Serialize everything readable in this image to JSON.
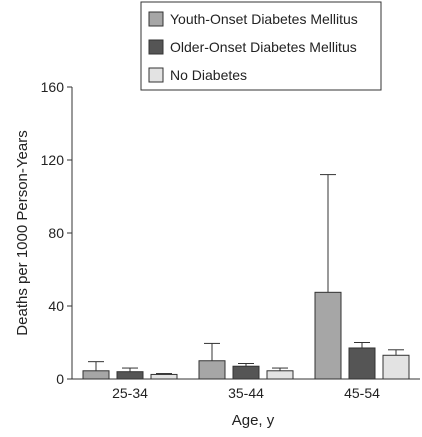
{
  "chart_data": {
    "type": "bar",
    "title": "",
    "xlabel": "Age, y",
    "ylabel": "Deaths per 1000 Person-Years",
    "ylim": [
      0,
      160
    ],
    "yticks": [
      0,
      40,
      80,
      120,
      160
    ],
    "categories": [
      "25-34",
      "35-44",
      "45-54"
    ],
    "legend_position": "top-right",
    "grid": false,
    "error_bars": "upper",
    "series": [
      {
        "name": "Youth-Onset Diabetes Mellitus",
        "color": "#a6a6a6",
        "values": [
          4.5,
          10,
          47.5
        ],
        "error_upper": [
          9.5,
          19.5,
          112
        ]
      },
      {
        "name": "Older-Onset Diabetes Mellitus",
        "color": "#555555",
        "values": [
          4,
          7,
          17
        ],
        "error_upper": [
          6,
          8.5,
          20
        ]
      },
      {
        "name": "No Diabetes",
        "color": "#e3e3e3",
        "values": [
          2.5,
          4.5,
          13
        ],
        "error_upper": [
          3,
          6,
          16
        ]
      }
    ]
  }
}
